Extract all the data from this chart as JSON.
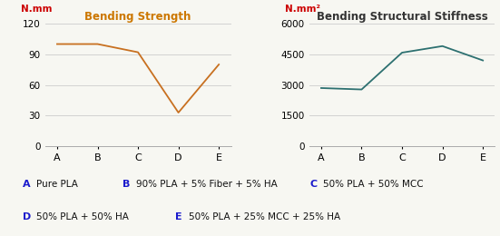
{
  "bending_strength": {
    "title": "Bending Strength",
    "ylabel": "N.mm",
    "categories": [
      "A",
      "B",
      "C",
      "D",
      "E"
    ],
    "values": [
      100,
      100,
      92,
      33,
      80
    ],
    "ylim": [
      0,
      120
    ],
    "yticks": [
      0,
      30,
      60,
      90,
      120
    ],
    "line_color": "#c87020",
    "ylabel_color": "#cc0000",
    "title_color": "#cc7700"
  },
  "bending_stiffness": {
    "title": "Bending Structural Stiffness",
    "ylabel": "N.mm²",
    "categories": [
      "A",
      "B",
      "C",
      "D",
      "E"
    ],
    "values": [
      2850,
      2780,
      4580,
      4900,
      4200
    ],
    "ylim": [
      0,
      6000
    ],
    "yticks": [
      0,
      1500,
      3000,
      4500,
      6000
    ],
    "line_color": "#2d7070",
    "ylabel_color": "#cc0000",
    "title_color": "#333333"
  },
  "legend": [
    {
      "label": "A",
      "desc": "Pure PLA"
    },
    {
      "label": "B",
      "desc": "90% PLA + 5% Fiber + 5% HA"
    },
    {
      "label": "C",
      "desc": "50% PLA + 50% MCC"
    },
    {
      "label": "D",
      "desc": "50% PLA + 50% HA"
    },
    {
      "label": "E",
      "desc": "50% PLA + 25% MCC + 25% HA"
    }
  ],
  "legend_label_color": "#1a1acc",
  "legend_desc_color": "#111111",
  "bg_color": "#f7f7f2"
}
